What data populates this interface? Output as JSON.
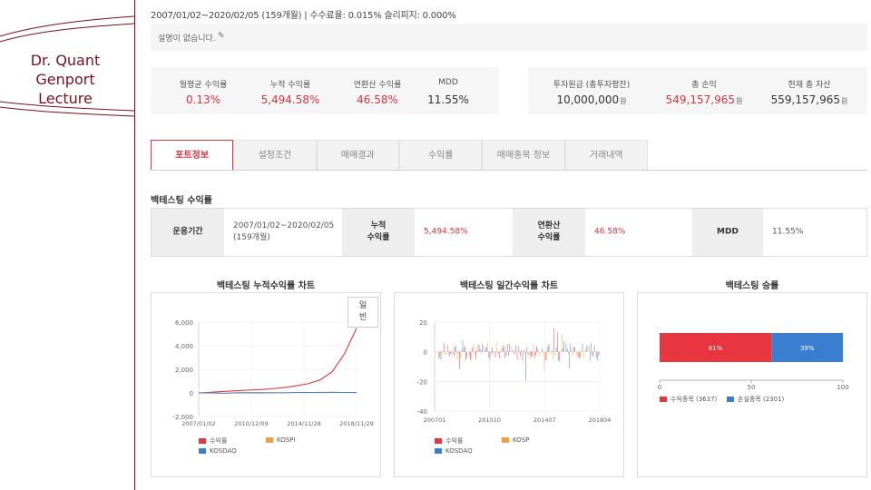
{
  "lecture": {
    "line1": "Dr. Quant",
    "line2": "Genport",
    "line3": "Lecture"
  },
  "header": {
    "summary": "2007/01/02~2020/02/05 (159개월) | 수수료율: 0.015% 슬리피지: 0.000%"
  },
  "description": {
    "text": "설명이 없습니다.",
    "icon": "pencil-icon"
  },
  "stats_left": [
    {
      "label": "월평균 수익률",
      "value": "0.13%"
    },
    {
      "label": "누적 수익률",
      "value": "5,494.58%"
    },
    {
      "label": "연환산 수익률",
      "value": "46.58%"
    },
    {
      "label": "MDD",
      "value": "11.55%"
    }
  ],
  "stats_right": [
    {
      "label": "투자원금 (총투자평잔)",
      "value": "10,000,000",
      "unit": "원"
    },
    {
      "label": "총 손익",
      "value": "549,157,965",
      "unit": "원"
    },
    {
      "label": "현재 총 자산",
      "value": "559,157,965",
      "unit": "원"
    }
  ],
  "tabs": [
    "포트정보",
    "설정조건",
    "매매결과",
    "수익률",
    "매매종목 정보",
    "거래내역"
  ],
  "backtest": {
    "section_title": "백테스팅 수익률",
    "period_label": "운용기간",
    "period_value_1": "2007/01/02~2020/02/05",
    "period_value_2": "(159개월)",
    "cum_label_1": "누적",
    "cum_label_2": "수익률",
    "cum_value": "5,494.58%",
    "ann_label_1": "연환산",
    "ann_label_2": "수익률",
    "ann_value": "46.58%",
    "mdd_label": "MDD",
    "mdd_value": "11.55%"
  },
  "panels": {
    "cum_title": "백테스팅 누적수익률 차트",
    "daily_title": "백테스팅 일간수익률 차트",
    "win_title": "백테스팅 승률",
    "toggle_line1": "일",
    "toggle_line2": "빈"
  },
  "colors": {
    "red": "#e8353f",
    "orange": "#f0a040",
    "blue": "#3a7fcf",
    "accent": "#d9343f"
  },
  "chart_data": [
    {
      "type": "line",
      "title": "백테스팅 누적수익률 차트",
      "x_ticks": [
        "2007/01/02",
        "2010/12/09",
        "2014/11/28",
        "2018/11/29"
      ],
      "y_ticks": [
        -2000,
        0,
        2000,
        4000,
        6000
      ],
      "ylim": [
        -2000,
        6000
      ],
      "x": [
        "2007/01",
        "2008/01",
        "2009/01",
        "2010/01",
        "2011/01",
        "2012/01",
        "2013/01",
        "2014/01",
        "2015/01",
        "2016/01",
        "2017/01",
        "2018/01",
        "2019/01",
        "2020/02"
      ],
      "series": [
        {
          "name": "수익률",
          "color": "#e8353f",
          "values": [
            0,
            50,
            120,
            180,
            230,
            280,
            350,
            450,
            600,
            780,
            1100,
            1800,
            3300,
            5494
          ]
        },
        {
          "name": "KOSPI",
          "color": "#f0a040",
          "values": [
            0,
            10,
            -20,
            20,
            40,
            30,
            30,
            20,
            30,
            30,
            50,
            60,
            40,
            40
          ]
        },
        {
          "name": "KOSDAQ",
          "color": "#3a7fcf",
          "values": [
            0,
            -10,
            -30,
            0,
            10,
            0,
            10,
            10,
            30,
            40,
            30,
            50,
            30,
            40
          ]
        }
      ],
      "legend": "bottom"
    },
    {
      "type": "bar",
      "title": "백테스팅 일간수익률 차트",
      "x_ticks": [
        "200701",
        "201010",
        "201407",
        "201804"
      ],
      "y_ticks": [
        20,
        0,
        -20,
        -40
      ],
      "ylim": [
        -40,
        20
      ],
      "series": [
        {
          "name": "수익률",
          "color": "#e8353f"
        },
        {
          "name": "KOSP",
          "color": "#f0a040"
        },
        {
          "name": "KOSDAQ",
          "color": "#3a7fcf"
        }
      ],
      "legend": "bottom"
    },
    {
      "type": "bar",
      "title": "백테스팅 승률",
      "orientation": "horizontal-stacked",
      "x_ticks": [
        0,
        50,
        100
      ],
      "xlim": [
        0,
        100
      ],
      "series": [
        {
          "name": "수익종목 (3637)",
          "color": "#e8353f",
          "value": 61,
          "label": "61%"
        },
        {
          "name": "손실종목 (2301)",
          "color": "#3a7fcf",
          "value": 39,
          "label": "39%"
        }
      ],
      "legend": "bottom"
    }
  ]
}
